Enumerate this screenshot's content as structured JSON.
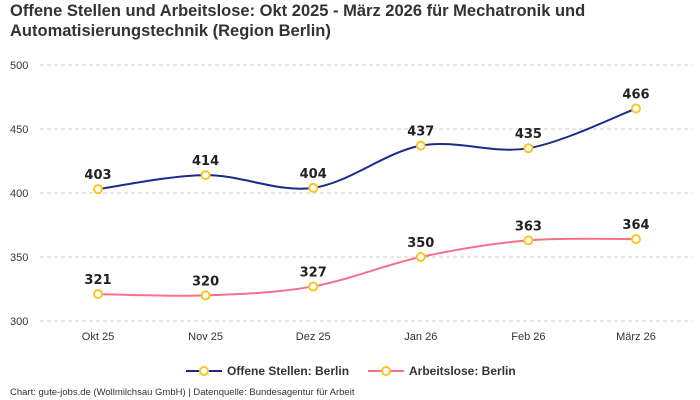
{
  "chart_data": {
    "type": "line",
    "title": "Offene Stellen und Arbeitslose: Okt 2025 - März 2026 für Mechatronik und Automatisierungstechnik (Region Berlin)",
    "categories": [
      "Okt 25",
      "Nov 25",
      "Dez 25",
      "Jan 26",
      "Feb 26",
      "März 26"
    ],
    "ylim": [
      300,
      500
    ],
    "yticks": [
      300,
      350,
      400,
      450,
      500
    ],
    "grid": true,
    "legend_position": "bottom",
    "series": [
      {
        "name": "Offene Stellen: Berlin",
        "values": [
          403,
          414,
          404,
          437,
          435,
          466
        ],
        "color": "#1b2a8c"
      },
      {
        "name": "Arbeitslose: Berlin",
        "values": [
          321,
          320,
          327,
          350,
          363,
          364
        ],
        "color": "#f7708c"
      }
    ],
    "marker_color": "#f9c623"
  },
  "footer": "Chart: gute-jobs.de (Wollmilchsau GmbH) | Datenquelle: Bundesagentur für Arbeit"
}
